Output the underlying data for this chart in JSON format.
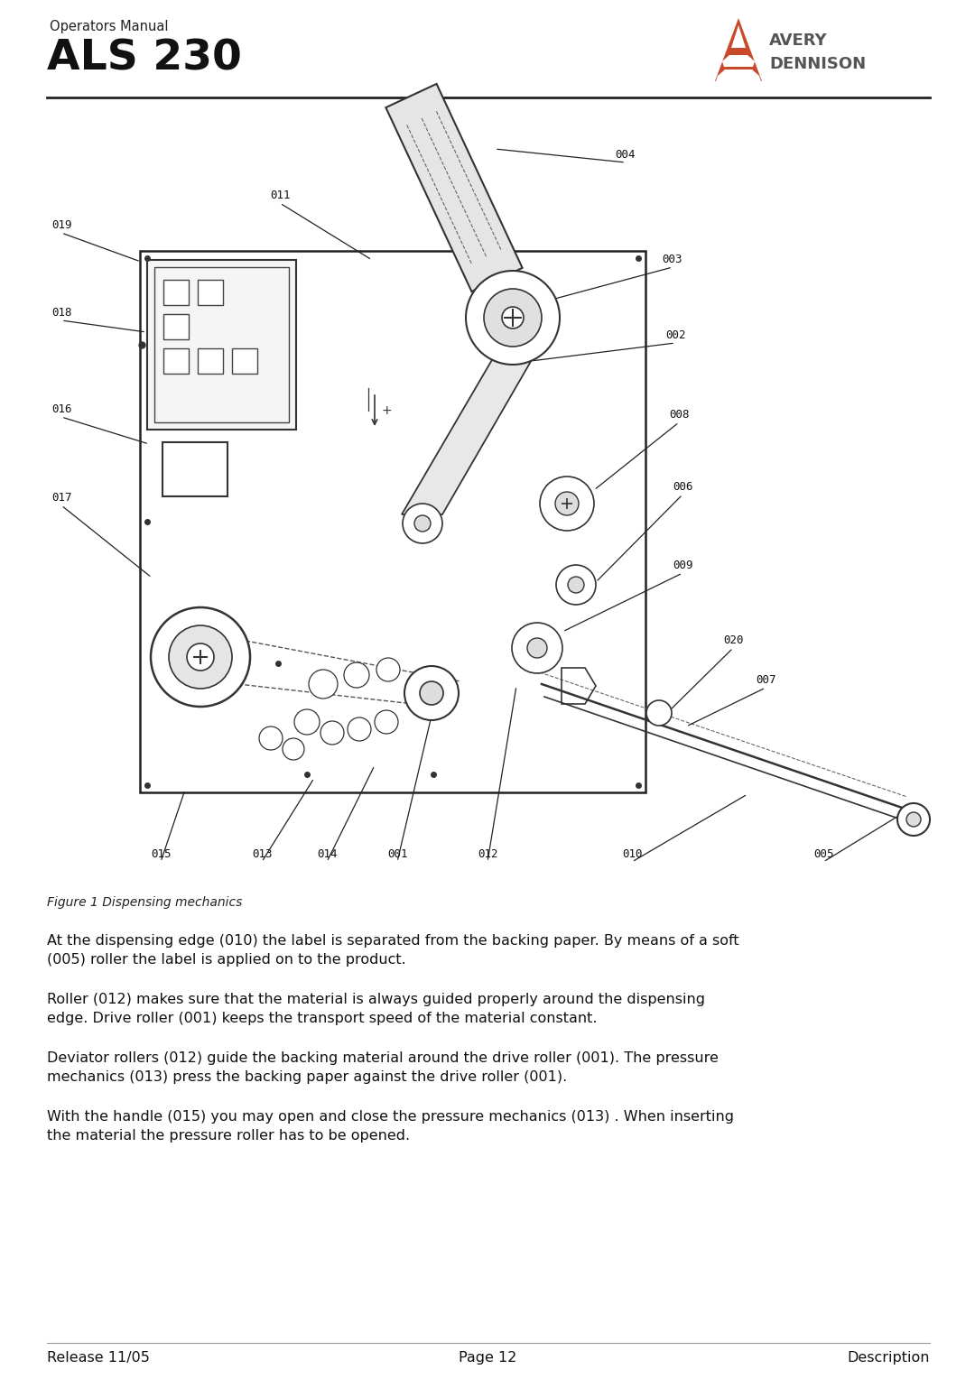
{
  "bg_color": "#ffffff",
  "header": {
    "subtitle": "Operators Manual",
    "title": "ALS 230",
    "subtitle_fontsize": 10,
    "title_fontsize": 32
  },
  "figure_caption": "Figure 1 Dispensing mechanics",
  "body_paragraphs": [
    "At the dispensing edge (010) the label is separated from the backing paper. By means of a soft\n(005) roller the label is applied on to the product.",
    "Roller (012) makes sure that the material is always guided properly around the dispensing\nedge. Drive roller (001) keeps the transport speed of the material constant.",
    "Deviator rollers (012) guide the backing material around the drive roller (001). The pressure\nmechanics (013) press the backing paper against the drive roller (001).",
    "With the handle (015) you may open and close the pressure mechanics (013) . When inserting\nthe material the pressure roller has to be opened."
  ],
  "footer": {
    "left": "Release 11/05",
    "center": "Page 12",
    "right": "Description"
  }
}
